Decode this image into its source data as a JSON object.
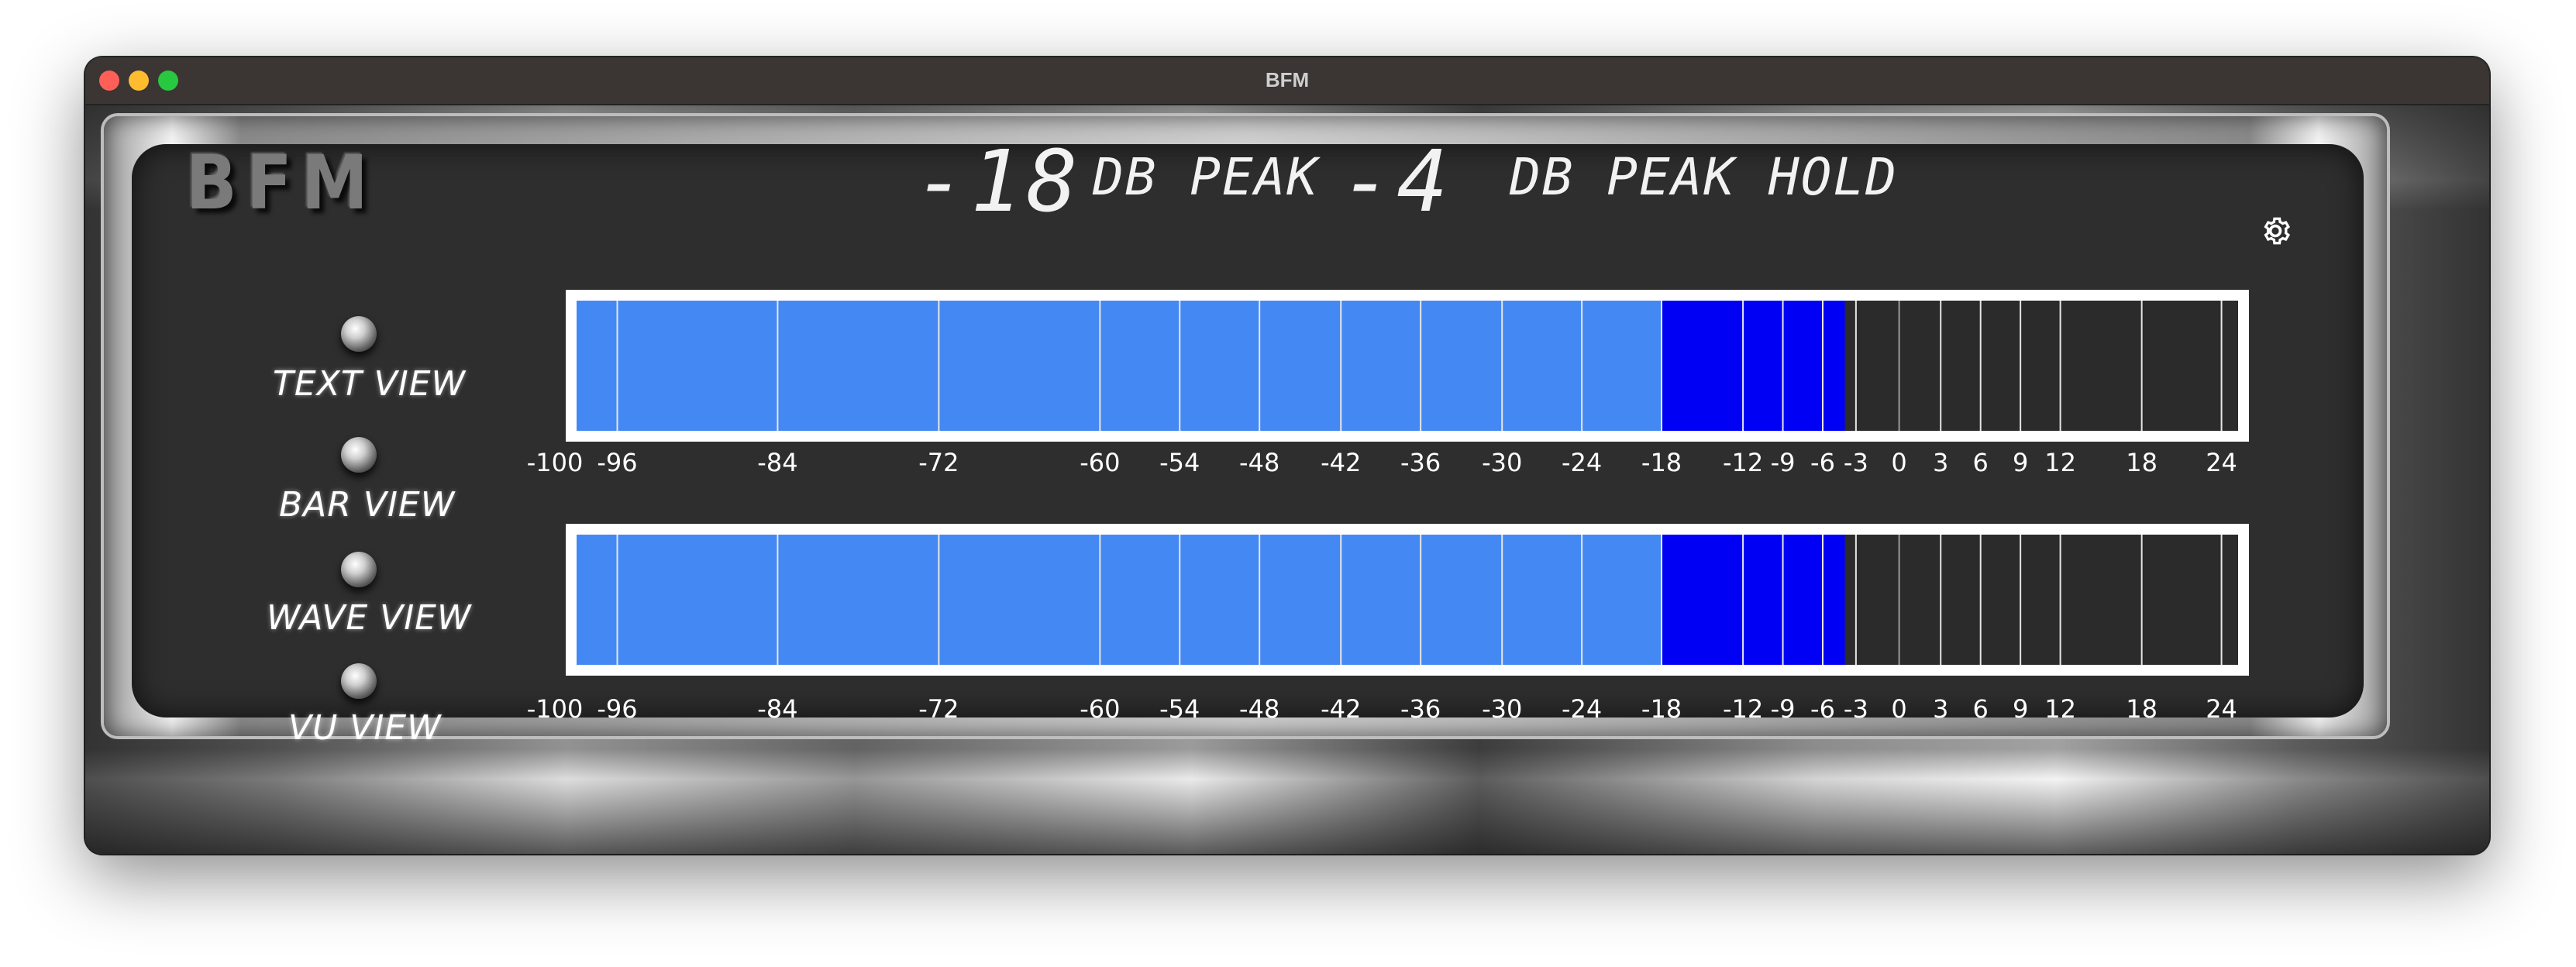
{
  "window": {
    "title": "BFM"
  },
  "logo": "BFM",
  "readouts": {
    "peak_value": "-18",
    "peak_label": "DB PEAK",
    "hold_value": "-4",
    "hold_label": "DB PEAK HOLD"
  },
  "view_options": [
    {
      "label": "TEXT VIEW"
    },
    {
      "label": "BAR VIEW"
    },
    {
      "label": "WAVE VIEW"
    },
    {
      "label": "VU VIEW"
    }
  ],
  "scale": {
    "min": -100,
    "max": 24,
    "ticks": [
      -100,
      -96,
      -84,
      -72,
      -60,
      -54,
      -48,
      -42,
      -36,
      -30,
      -24,
      -18,
      -12,
      -9,
      -6,
      -3,
      0,
      3,
      6,
      9,
      12,
      18,
      24
    ],
    "tick_labels": [
      "-100",
      "-96",
      "-84",
      "-72",
      "-60",
      "-54",
      "-48",
      "-42",
      "-36",
      "-30",
      "-24",
      "-18",
      "-12",
      "-9",
      "-6",
      "-3",
      "0",
      "3",
      "6",
      "9",
      "12",
      "18",
      "24"
    ]
  },
  "meters": [
    {
      "channel": 1,
      "level_db": -18,
      "hold_db": -4
    },
    {
      "channel": 2,
      "level_db": -18,
      "hold_db": -4
    }
  ],
  "colors": {
    "level_fill": "#4489f3",
    "hold_fill": "#0000f5",
    "empty_fill": "#2b2b2b",
    "segment_line": "#e6e6e6",
    "meter_border": "#ffffff"
  },
  "icons": {
    "settings": "gear-icon"
  }
}
